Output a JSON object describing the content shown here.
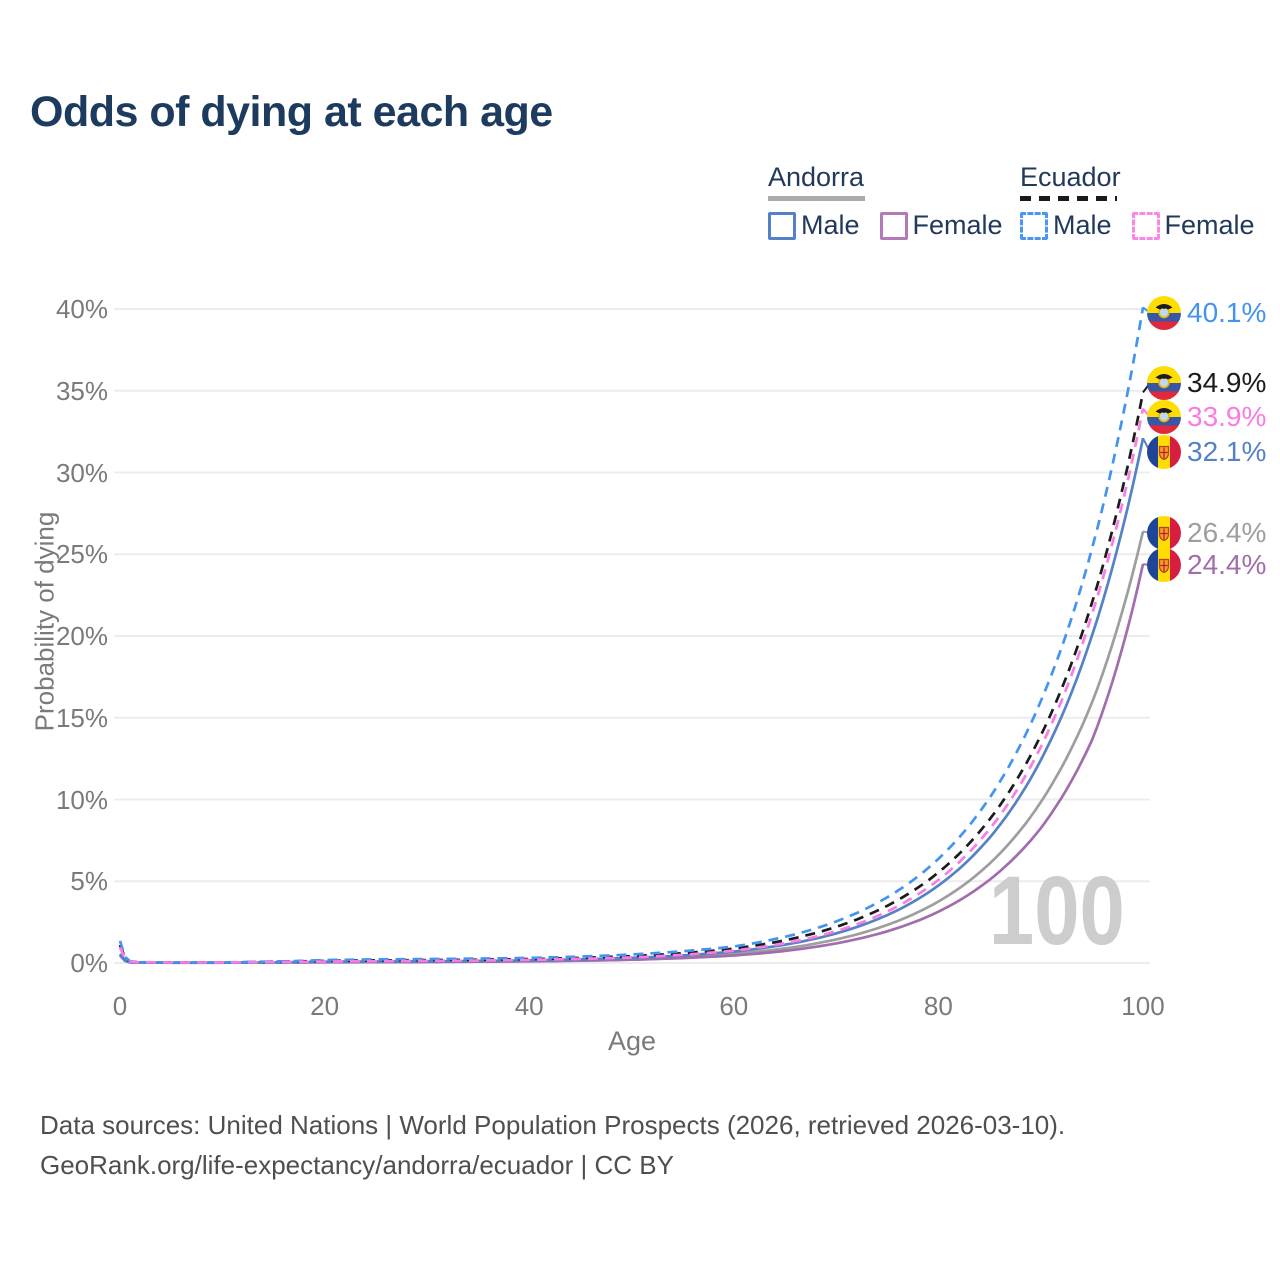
{
  "title": "Odds of dying at each age",
  "legend": {
    "groups": [
      {
        "label": "Andorra",
        "style": "solid",
        "rule_color": "#ABABAB",
        "items": [
          {
            "label": "Male",
            "color": "#5581C6",
            "dashed": false
          },
          {
            "label": "Female",
            "color": "#B479B6",
            "dashed": false
          }
        ]
      },
      {
        "label": "Ecuador",
        "style": "dashed",
        "rule_color": "#1A1A1A",
        "items": [
          {
            "label": "Male",
            "color": "#4A97F2",
            "dashed": true
          },
          {
            "label": "Female",
            "color": "#FB86E9",
            "dashed": true
          }
        ]
      }
    ]
  },
  "axes": {
    "y_title": "Probability of dying",
    "x_title": "Age",
    "y_ticks": [
      {
        "label": "0%",
        "value": 0
      },
      {
        "label": "5%",
        "value": 5
      },
      {
        "label": "10%",
        "value": 10
      },
      {
        "label": "15%",
        "value": 15
      },
      {
        "label": "20%",
        "value": 20
      },
      {
        "label": "25%",
        "value": 25
      },
      {
        "label": "30%",
        "value": 30
      },
      {
        "label": "35%",
        "value": 35
      },
      {
        "label": "40%",
        "value": 40
      }
    ],
    "x_ticks": [
      {
        "label": "0",
        "value": 0
      },
      {
        "label": "20",
        "value": 20
      },
      {
        "label": "40",
        "value": 40
      },
      {
        "label": "60",
        "value": 60
      },
      {
        "label": "80",
        "value": 80
      },
      {
        "label": "100",
        "value": 100
      }
    ]
  },
  "watermark": "100",
  "footer": {
    "line1": "Data sources: United Nations | World Population Prospects (2026, retrieved 2026-03-10).",
    "line2": "GeoRank.org/life-expectancy/andorra/ecuador | CC BY"
  },
  "chart_data": {
    "type": "line",
    "title": "Odds of dying at each age",
    "xlabel": "Age",
    "ylabel": "Probability of dying",
    "xlim": [
      0,
      100
    ],
    "ylim": [
      0,
      40
    ],
    "y_unit": "%",
    "grid": "horizontal",
    "legend_position": "top-right",
    "series": [
      {
        "id": "andorra_total",
        "name": "Andorra (both sexes)",
        "country": "Andorra",
        "sex": "total",
        "color": "#9E9E9E",
        "dash": false,
        "flag": "andorra",
        "end_label": "26.4%",
        "end_value": 26.4,
        "points": [
          [
            0,
            0.5
          ],
          [
            1,
            0.04
          ],
          [
            2,
            0.02
          ],
          [
            5,
            0.018
          ],
          [
            10,
            0.018
          ],
          [
            15,
            0.03
          ],
          [
            20,
            0.06
          ],
          [
            25,
            0.07
          ],
          [
            30,
            0.08
          ],
          [
            35,
            0.1
          ],
          [
            40,
            0.13
          ],
          [
            45,
            0.18
          ],
          [
            50,
            0.25
          ],
          [
            55,
            0.37
          ],
          [
            60,
            0.56
          ],
          [
            65,
            0.89
          ],
          [
            70,
            1.44
          ],
          [
            75,
            2.33
          ],
          [
            80,
            3.76
          ],
          [
            85,
            6.08
          ],
          [
            90,
            9.83
          ],
          [
            95,
            15.9
          ],
          [
            100,
            26.4
          ]
        ]
      },
      {
        "id": "andorra_female",
        "name": "Andorra Female",
        "country": "Andorra",
        "sex": "female",
        "color": "#A26DAD",
        "dash": false,
        "flag": "andorra",
        "end_label": "24.4%",
        "end_value": 24.4,
        "points": [
          [
            0,
            0.45
          ],
          [
            1,
            0.035
          ],
          [
            2,
            0.018
          ],
          [
            5,
            0.015
          ],
          [
            10,
            0.015
          ],
          [
            15,
            0.025
          ],
          [
            20,
            0.04
          ],
          [
            25,
            0.05
          ],
          [
            30,
            0.06
          ],
          [
            35,
            0.08
          ],
          [
            40,
            0.1
          ],
          [
            45,
            0.14
          ],
          [
            50,
            0.2
          ],
          [
            55,
            0.3
          ],
          [
            60,
            0.46
          ],
          [
            65,
            0.74
          ],
          [
            70,
            1.2
          ],
          [
            75,
            1.94
          ],
          [
            80,
            3.14
          ],
          [
            85,
            5.09
          ],
          [
            90,
            8.24
          ],
          [
            95,
            13.6
          ],
          [
            100,
            24.4
          ]
        ]
      },
      {
        "id": "andorra_male",
        "name": "Andorra Male",
        "country": "Andorra",
        "sex": "male",
        "color": "#5581C6",
        "dash": false,
        "flag": "andorra",
        "end_label": "32.1%",
        "end_value": 32.1,
        "points": [
          [
            0,
            0.55
          ],
          [
            1,
            0.045
          ],
          [
            2,
            0.025
          ],
          [
            5,
            0.02
          ],
          [
            10,
            0.02
          ],
          [
            15,
            0.04
          ],
          [
            20,
            0.08
          ],
          [
            25,
            0.09
          ],
          [
            30,
            0.1
          ],
          [
            35,
            0.12
          ],
          [
            40,
            0.16
          ],
          [
            45,
            0.22
          ],
          [
            50,
            0.31
          ],
          [
            55,
            0.46
          ],
          [
            60,
            0.7
          ],
          [
            65,
            1.12
          ],
          [
            70,
            1.81
          ],
          [
            75,
            2.93
          ],
          [
            80,
            4.74
          ],
          [
            85,
            7.66
          ],
          [
            90,
            12.4
          ],
          [
            95,
            20.0
          ],
          [
            100,
            32.1
          ]
        ]
      },
      {
        "id": "ecuador_total",
        "name": "Ecuador (both sexes)",
        "country": "Ecuador",
        "sex": "total",
        "color": "#1C1C1C",
        "dash": true,
        "flag": "ecuador",
        "end_label": "34.9%",
        "end_value": 34.9,
        "points": [
          [
            0,
            1.1
          ],
          [
            1,
            0.085
          ],
          [
            2,
            0.045
          ],
          [
            5,
            0.035
          ],
          [
            10,
            0.035
          ],
          [
            15,
            0.07
          ],
          [
            20,
            0.13
          ],
          [
            25,
            0.16
          ],
          [
            30,
            0.18
          ],
          [
            35,
            0.2
          ],
          [
            40,
            0.24
          ],
          [
            45,
            0.31
          ],
          [
            50,
            0.42
          ],
          [
            55,
            0.6
          ],
          [
            60,
            0.88
          ],
          [
            65,
            1.39
          ],
          [
            70,
            2.21
          ],
          [
            75,
            3.5
          ],
          [
            80,
            5.54
          ],
          [
            85,
            8.78
          ],
          [
            90,
            13.9
          ],
          [
            95,
            22.0
          ],
          [
            100,
            34.9
          ]
        ]
      },
      {
        "id": "ecuador_male",
        "name": "Ecuador Male",
        "country": "Ecuador",
        "sex": "male",
        "color": "#4493F0",
        "dash": true,
        "flag": "ecuador",
        "end_label": "40.1%",
        "end_value": 40.1,
        "points": [
          [
            0,
            1.35
          ],
          [
            1,
            0.1
          ],
          [
            2,
            0.05
          ],
          [
            5,
            0.04
          ],
          [
            10,
            0.04
          ],
          [
            15,
            0.09
          ],
          [
            20,
            0.18
          ],
          [
            25,
            0.22
          ],
          [
            30,
            0.24
          ],
          [
            35,
            0.27
          ],
          [
            40,
            0.31
          ],
          [
            45,
            0.39
          ],
          [
            50,
            0.52
          ],
          [
            55,
            0.72
          ],
          [
            60,
            1.01
          ],
          [
            65,
            1.6
          ],
          [
            70,
            2.54
          ],
          [
            75,
            4.02
          ],
          [
            80,
            6.37
          ],
          [
            85,
            10.1
          ],
          [
            90,
            16.0
          ],
          [
            95,
            25.3
          ],
          [
            100,
            40.1
          ]
        ]
      },
      {
        "id": "ecuador_female",
        "name": "Ecuador Female",
        "country": "Ecuador",
        "sex": "female",
        "color": "#FA7CE3",
        "dash": true,
        "flag": "ecuador",
        "end_label": "33.9%",
        "end_value": 33.9,
        "points": [
          [
            0,
            0.95
          ],
          [
            1,
            0.075
          ],
          [
            2,
            0.04
          ],
          [
            5,
            0.03
          ],
          [
            10,
            0.03
          ],
          [
            15,
            0.05
          ],
          [
            20,
            0.09
          ],
          [
            25,
            0.11
          ],
          [
            30,
            0.13
          ],
          [
            35,
            0.15
          ],
          [
            40,
            0.19
          ],
          [
            45,
            0.25
          ],
          [
            50,
            0.34
          ],
          [
            55,
            0.5
          ],
          [
            60,
            0.76
          ],
          [
            65,
            1.21
          ],
          [
            70,
            1.95
          ],
          [
            75,
            3.15
          ],
          [
            80,
            5.08
          ],
          [
            85,
            8.19
          ],
          [
            90,
            13.2
          ],
          [
            95,
            21.3
          ],
          [
            100,
            33.9
          ]
        ]
      }
    ]
  }
}
